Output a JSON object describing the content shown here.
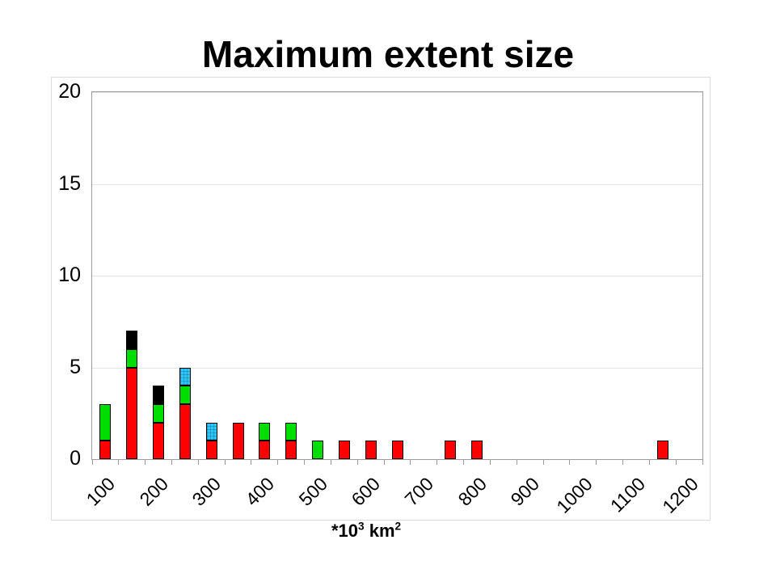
{
  "title": "Maximum extent size",
  "chart_data": {
    "type": "bar",
    "stacked": true,
    "title": "Maximum extent size",
    "xlabel": "*10^3 km^2",
    "ylabel": "",
    "ylim": [
      0,
      20
    ],
    "yticks": [
      0,
      5,
      10,
      15,
      20
    ],
    "grid": true,
    "legend": "none",
    "categories": [
      100,
      150,
      200,
      250,
      300,
      350,
      400,
      450,
      500,
      550,
      600,
      650,
      700,
      750,
      800,
      850,
      900,
      950,
      1000,
      1050,
      1100,
      1150,
      1200
    ],
    "xtick_labels": [
      "100",
      "200",
      "300",
      "400",
      "500",
      "600",
      "700",
      "800",
      "900",
      "1000",
      "1100",
      "1200"
    ],
    "label_every_n_categories": 2,
    "series": [
      {
        "name": "red",
        "color": "#ff0000",
        "pattern": "solid",
        "values": [
          1,
          5,
          2,
          3,
          1,
          2,
          1,
          1,
          0,
          1,
          1,
          1,
          0,
          1,
          1,
          0,
          0,
          0,
          0,
          0,
          0,
          1,
          0
        ]
      },
      {
        "name": "green",
        "color": "#00dd00",
        "pattern": "solid",
        "values": [
          2,
          1,
          1,
          1,
          0,
          0,
          1,
          1,
          1,
          0,
          0,
          0,
          0,
          0,
          0,
          0,
          0,
          0,
          0,
          0,
          0,
          0,
          0
        ]
      },
      {
        "name": "cyan",
        "color": "#2fc7f5",
        "pattern": "grid",
        "values": [
          0,
          0,
          0,
          1,
          1,
          0,
          0,
          0,
          0,
          0,
          0,
          0,
          0,
          0,
          0,
          0,
          0,
          0,
          0,
          0,
          0,
          0,
          0
        ]
      },
      {
        "name": "black",
        "color": "#000000",
        "pattern": "solid",
        "values": [
          0,
          1,
          1,
          0,
          0,
          0,
          0,
          0,
          0,
          0,
          0,
          0,
          0,
          0,
          0,
          0,
          0,
          0,
          0,
          0,
          0,
          0,
          0
        ]
      }
    ]
  },
  "x_axis_unit": {
    "base1": "*10",
    "sup1": "3",
    "base2": " km",
    "sup2": "2"
  },
  "colors": {
    "background": "#ffffff",
    "bar_border": "#000000",
    "plot_border": "#9c9c9c",
    "frame_border": "#dcdcdc",
    "gridline": "#e4e4e4"
  }
}
